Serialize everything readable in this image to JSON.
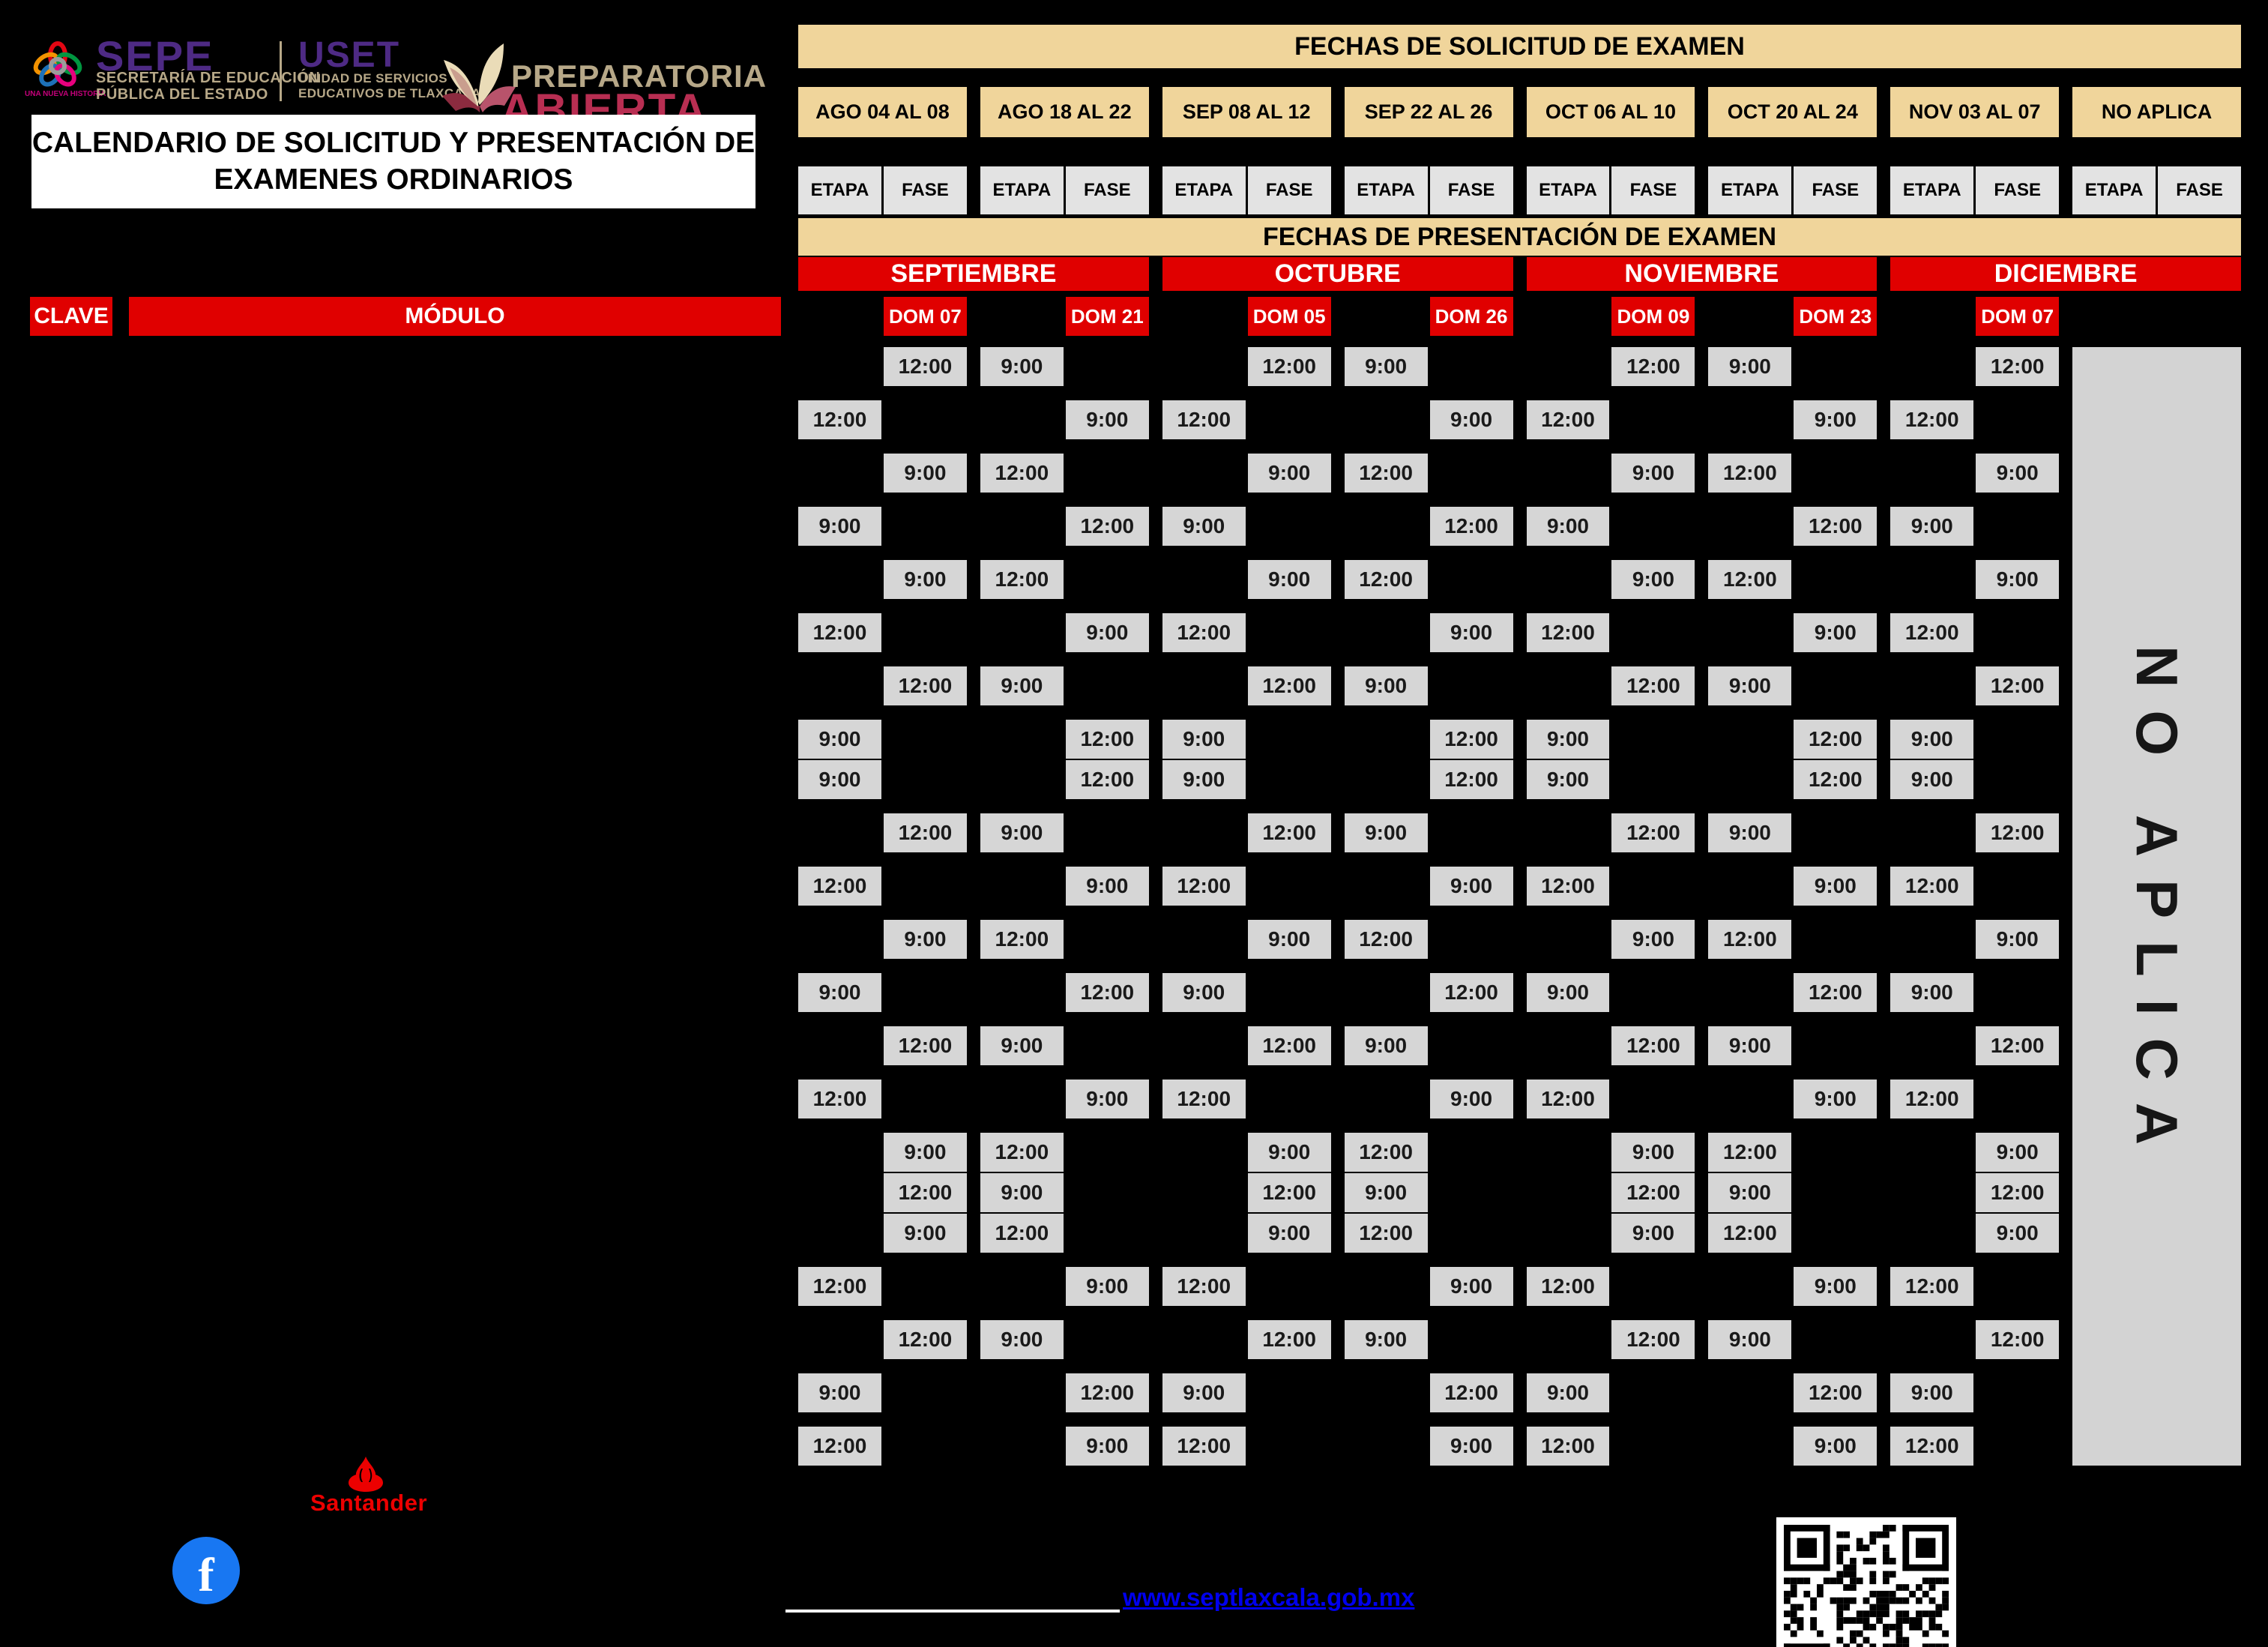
{
  "branding": {
    "sepe": {
      "acronym": "SEPE",
      "line1": "SECRETARÍA DE EDUCACIÓN",
      "line2": "PÚBLICA DEL ESTADO",
      "slogan": "UNA NUEVA HISTORIA"
    },
    "uset": {
      "acronym": "USET",
      "line1": "UNIDAD DE SERVICIOS",
      "line2": "EDUCATIVOS DE TLAXCALA"
    },
    "prepa": {
      "line1": "PREPARATORIA",
      "line2": "ABIERTA"
    },
    "santander_label": "Santander",
    "facebook_glyph": "f"
  },
  "title": {
    "line1": "CALENDARIO DE SOLICITUD Y PRESENTACIÓN DE",
    "line2": "EXAMENES ORDINARIOS"
  },
  "solicitud": {
    "header": "FECHAS DE SOLICITUD DE EXAMEN",
    "etapa_label": "ETAPA",
    "fase_label": "FASE",
    "periods": [
      "AGO 04 AL 08",
      "AGO 18 AL 22",
      "SEP 08 AL 12",
      "SEP 22 AL 26",
      "OCT 06 AL 10",
      "OCT 20 AL 24",
      "NOV 03 AL 07",
      "NO APLICA"
    ]
  },
  "presentacion": {
    "header": "FECHAS DE PRESENTACIÓN DE EXAMEN",
    "months": [
      {
        "name": "SEPTIEMBRE",
        "dom1": "DOM 07",
        "dom2": "DOM 21"
      },
      {
        "name": "OCTUBRE",
        "dom1": "DOM 05",
        "dom2": "DOM 26"
      },
      {
        "name": "NOVIEMBRE",
        "dom1": "DOM 09",
        "dom2": "DOM 23"
      },
      {
        "name": "DICIEMBRE",
        "dom1": "DOM 07",
        "dom2": null
      }
    ]
  },
  "table": {
    "clave_header": "CLAVE",
    "modulo_header": "MÓDULO",
    "no_aplica_text": "NO APLICA",
    "rows": [
      {
        "first": {
          "slot": "fase",
          "time": "12:00"
        },
        "second": {
          "slot": "etapa",
          "time": "9:00"
        }
      },
      {
        "first": {
          "slot": "etapa",
          "time": "12:00"
        },
        "second": {
          "slot": "fase",
          "time": "9:00"
        }
      },
      {
        "first": {
          "slot": "fase",
          "time": "9:00"
        },
        "second": {
          "slot": "etapa",
          "time": "12:00"
        }
      },
      {
        "first": {
          "slot": "etapa",
          "time": "9:00"
        },
        "second": {
          "slot": "fase",
          "time": "12:00"
        }
      },
      {
        "first": {
          "slot": "fase",
          "time": "9:00"
        },
        "second": {
          "slot": "etapa",
          "time": "12:00"
        }
      },
      {
        "first": {
          "slot": "etapa",
          "time": "12:00"
        },
        "second": {
          "slot": "fase",
          "time": "9:00"
        }
      },
      {
        "first": {
          "slot": "fase",
          "time": "12:00"
        },
        "second": {
          "slot": "etapa",
          "time": "9:00"
        }
      },
      {
        "first": {
          "slot": "etapa",
          "time": "9:00"
        },
        "second": {
          "slot": "fase",
          "time": "12:00"
        }
      },
      {
        "first": {
          "slot": "etapa",
          "time": "9:00"
        },
        "second": {
          "slot": "fase",
          "time": "12:00"
        }
      },
      {
        "first": {
          "slot": "fase",
          "time": "12:00"
        },
        "second": {
          "slot": "etapa",
          "time": "9:00"
        }
      },
      {
        "first": {
          "slot": "etapa",
          "time": "12:00"
        },
        "second": {
          "slot": "fase",
          "time": "9:00"
        }
      },
      {
        "first": {
          "slot": "fase",
          "time": "9:00"
        },
        "second": {
          "slot": "etapa",
          "time": "12:00"
        }
      },
      {
        "first": {
          "slot": "etapa",
          "time": "9:00"
        },
        "second": {
          "slot": "fase",
          "time": "12:00"
        }
      },
      {
        "first": {
          "slot": "fase",
          "time": "12:00"
        },
        "second": {
          "slot": "etapa",
          "time": "9:00"
        }
      },
      {
        "first": {
          "slot": "etapa",
          "time": "12:00"
        },
        "second": {
          "slot": "fase",
          "time": "9:00"
        }
      },
      {
        "first": {
          "slot": "fase",
          "time": "9:00"
        },
        "second": {
          "slot": "etapa",
          "time": "12:00"
        }
      },
      {
        "first": {
          "slot": "fase",
          "time": "12:00"
        },
        "second": {
          "slot": "etapa",
          "time": "9:00"
        }
      },
      {
        "first": {
          "slot": "fase",
          "time": "9:00"
        },
        "second": {
          "slot": "etapa",
          "time": "12:00"
        }
      },
      {
        "first": {
          "slot": "etapa",
          "time": "12:00"
        },
        "second": {
          "slot": "fase",
          "time": "9:00"
        }
      },
      {
        "first": {
          "slot": "fase",
          "time": "12:00"
        },
        "second": {
          "slot": "etapa",
          "time": "9:00"
        }
      },
      {
        "first": {
          "slot": "etapa",
          "time": "9:00"
        },
        "second": {
          "slot": "fase",
          "time": "12:00"
        }
      },
      {
        "first": {
          "slot": "etapa",
          "time": "12:00"
        },
        "second": {
          "slot": "fase",
          "time": "9:00"
        }
      }
    ]
  },
  "footer": {
    "website": "www.septlaxcala.gob.mx"
  },
  "colors": {
    "red": "#E00000",
    "tan": "#F0D59B",
    "graycell": "#D6D6D6",
    "grayhdr": "#E3E3E3",
    "graybig": "#D3D3D3",
    "purple": "#4E2A84",
    "brandtan": "#B7A888",
    "magenta": "#C4007A",
    "crimson": "#B82E52",
    "cream": "#EADCB8",
    "maroon": "#8C2B3F",
    "santander": "#EC0000",
    "facebook": "#1877F2",
    "link": "#0000EE"
  }
}
